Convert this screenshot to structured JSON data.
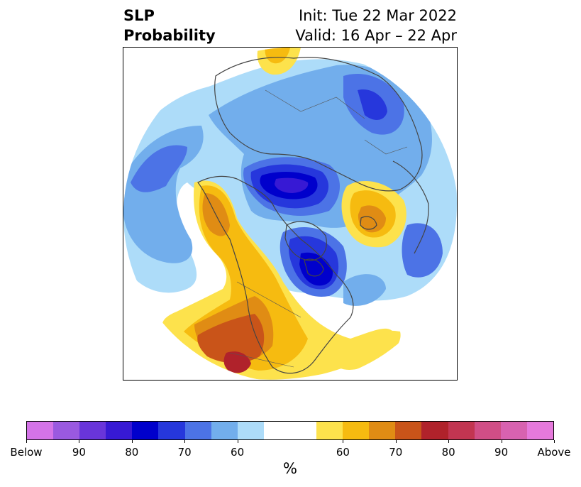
{
  "title": {
    "left_line1": "SLP",
    "left_line2": "Probability",
    "right_line1": "Init: Tue 22 Mar 2022",
    "right_line2": "Valid: 16 Apr – 22 Apr"
  },
  "map": {
    "projection": "polar-stereographic-north",
    "variable": "SLP probability",
    "anomalies": [
      {
        "region": "Hudson Bay / eastern Canada",
        "category": "Below",
        "peak": "80+"
      },
      {
        "region": "Barents / Kara Sea",
        "category": "Below",
        "peak": "80+"
      },
      {
        "region": "North Pacific",
        "category": "Below",
        "peak": "70"
      },
      {
        "region": "Northern Europe",
        "category": "Below",
        "peak": "70"
      },
      {
        "region": "Alaska / Bering",
        "category": "Above",
        "peak": "70"
      },
      {
        "region": "Western North America",
        "category": "Above",
        "peak": "80"
      },
      {
        "region": "Iceland",
        "category": "Above",
        "peak": "70"
      },
      {
        "region": "Eastern Siberia",
        "category": "Above",
        "peak": "60"
      },
      {
        "region": "Central Atlantic",
        "category": "Above",
        "peak": "60"
      }
    ]
  },
  "colorbar": {
    "colors": [
      "#d473e8",
      "#9a59e0",
      "#6935da",
      "#3719d4",
      "#0000cc",
      "#2637dc",
      "#4c73e6",
      "#72aeec",
      "#addcf9",
      "#ffffff",
      "#ffffff",
      "#fde24c",
      "#f6bb10",
      "#e08c14",
      "#c95419",
      "#b0222b",
      "#c23551",
      "#d04e86",
      "#d862b0",
      "#e679dc"
    ],
    "ticks": [
      "Below",
      "90",
      "80",
      "70",
      "60",
      "60",
      "70",
      "80",
      "90",
      "Above"
    ],
    "unit": "%"
  }
}
